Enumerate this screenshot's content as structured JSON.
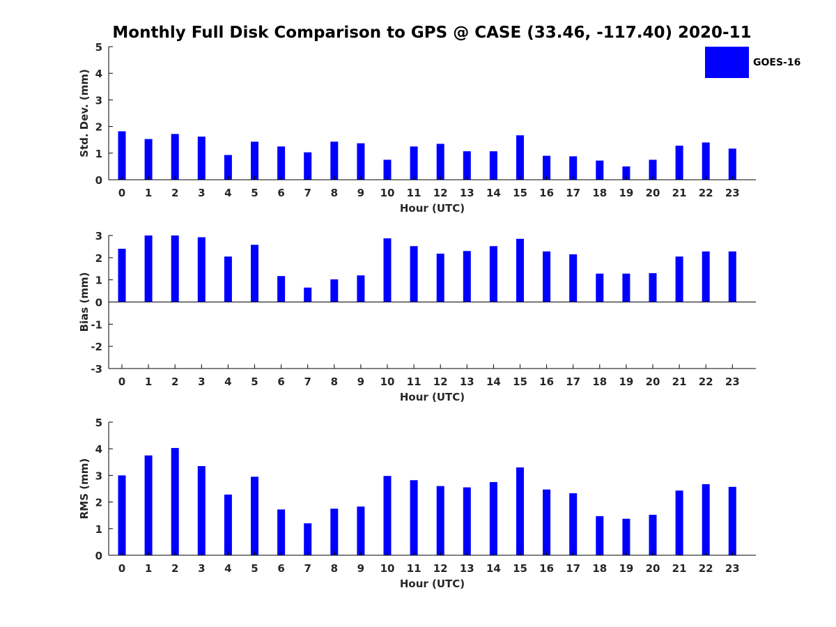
{
  "title": "Monthly Full Disk Comparison to GPS @ CASE (33.46, -117.40) 2020-11",
  "legend": {
    "label": "GOES-16",
    "color": "#0000ff",
    "position": "top-right"
  },
  "bar_color": "#0000ff",
  "chart_data": [
    {
      "type": "bar",
      "ylabel": "Std. Dev. (mm)",
      "xlabel": "Hour (UTC)",
      "ylim": [
        0,
        5
      ],
      "yticks": [
        0,
        1,
        2,
        3,
        4,
        5
      ],
      "x": [
        0,
        1,
        2,
        3,
        4,
        5,
        6,
        7,
        8,
        9,
        10,
        11,
        12,
        13,
        14,
        15,
        16,
        17,
        18,
        19,
        20,
        21,
        22,
        23
      ],
      "series": [
        {
          "name": "GOES-16",
          "values": [
            1.82,
            1.53,
            1.72,
            1.62,
            0.93,
            1.43,
            1.25,
            1.03,
            1.43,
            1.37,
            0.75,
            1.25,
            1.35,
            1.07,
            1.07,
            1.67,
            0.9,
            0.88,
            0.72,
            0.5,
            0.75,
            1.28,
            1.4,
            1.17
          ]
        }
      ]
    },
    {
      "type": "bar",
      "ylabel": "Bias (mm)",
      "xlabel": "Hour (UTC)",
      "ylim": [
        -3,
        3
      ],
      "yticks": [
        -3,
        -2,
        -1,
        0,
        1,
        2,
        3
      ],
      "x": [
        0,
        1,
        2,
        3,
        4,
        5,
        6,
        7,
        8,
        9,
        10,
        11,
        12,
        13,
        14,
        15,
        16,
        17,
        18,
        19,
        20,
        21,
        22,
        23
      ],
      "series": [
        {
          "name": "GOES-16",
          "values": [
            2.4,
            3.0,
            3.0,
            2.92,
            2.05,
            2.58,
            1.17,
            0.65,
            1.02,
            1.2,
            2.87,
            2.52,
            2.18,
            2.3,
            2.52,
            2.85,
            2.28,
            2.15,
            1.28,
            1.28,
            1.3,
            2.05,
            2.28,
            2.28
          ]
        }
      ]
    },
    {
      "type": "bar",
      "ylabel": "RMS (mm)",
      "xlabel": "Hour (UTC)",
      "ylim": [
        0,
        5
      ],
      "yticks": [
        0,
        1,
        2,
        3,
        4,
        5
      ],
      "x": [
        0,
        1,
        2,
        3,
        4,
        5,
        6,
        7,
        8,
        9,
        10,
        11,
        12,
        13,
        14,
        15,
        16,
        17,
        18,
        19,
        20,
        21,
        22,
        23
      ],
      "series": [
        {
          "name": "GOES-16",
          "values": [
            3.0,
            3.75,
            4.03,
            3.35,
            2.28,
            2.95,
            1.72,
            1.2,
            1.75,
            1.83,
            2.98,
            2.82,
            2.6,
            2.55,
            2.75,
            3.3,
            2.47,
            2.33,
            1.47,
            1.37,
            1.52,
            2.43,
            2.67,
            2.57
          ]
        }
      ]
    }
  ]
}
